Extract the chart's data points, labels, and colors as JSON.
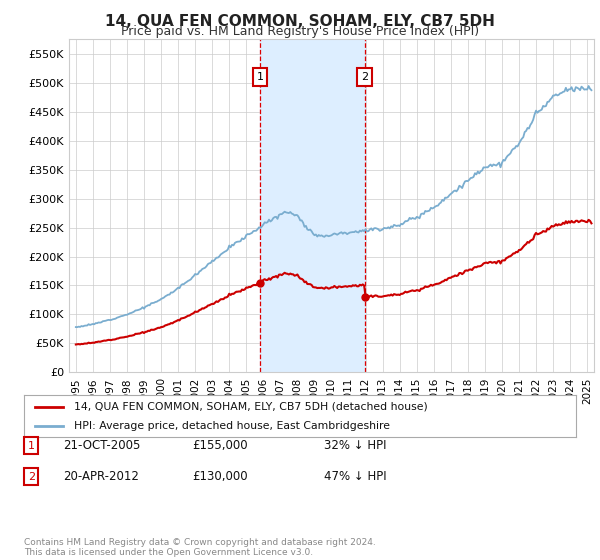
{
  "title": "14, QUA FEN COMMON, SOHAM, ELY, CB7 5DH",
  "subtitle": "Price paid vs. HM Land Registry's House Price Index (HPI)",
  "ylim": [
    0,
    575000
  ],
  "yticks": [
    0,
    50000,
    100000,
    150000,
    200000,
    250000,
    300000,
    350000,
    400000,
    450000,
    500000,
    550000
  ],
  "xlim_start": 1994.6,
  "xlim_end": 2025.4,
  "transaction1": {
    "date_x": 2005.8,
    "price": 155000,
    "label": "1",
    "date_str": "21-OCT-2005",
    "pct": "32% ↓ HPI"
  },
  "transaction2": {
    "date_x": 2011.95,
    "price": 130000,
    "label": "2",
    "date_str": "20-APR-2012",
    "pct": "47% ↓ HPI"
  },
  "legend_property_label": "14, QUA FEN COMMON, SOHAM, ELY, CB7 5DH (detached house)",
  "legend_hpi_label": "HPI: Average price, detached house, East Cambridgeshire",
  "footer": "Contains HM Land Registry data © Crown copyright and database right 2024.\nThis data is licensed under the Open Government Licence v3.0.",
  "property_color": "#cc0000",
  "hpi_color": "#7aadcf",
  "shading_color": "#ddeeff",
  "grid_color": "#cccccc",
  "background_color": "#ffffff",
  "hpi_keypoints_x": [
    1995,
    1996,
    1997,
    1998,
    1999,
    2000,
    2001,
    2002,
    2003,
    2004,
    2005,
    2006,
    2007,
    2007.5,
    2008,
    2008.5,
    2009,
    2009.5,
    2010,
    2011,
    2012,
    2013,
    2014,
    2015,
    2016,
    2017,
    2018,
    2019,
    2020,
    2021,
    2022,
    2023,
    2024,
    2025
  ],
  "hpi_keypoints_y": [
    78000,
    83000,
    91000,
    100000,
    112000,
    126000,
    145000,
    168000,
    192000,
    215000,
    235000,
    255000,
    272000,
    278000,
    270000,
    252000,
    238000,
    235000,
    238000,
    242000,
    245000,
    248000,
    255000,
    268000,
    285000,
    308000,
    330000,
    355000,
    360000,
    395000,
    445000,
    475000,
    488000,
    490000
  ]
}
